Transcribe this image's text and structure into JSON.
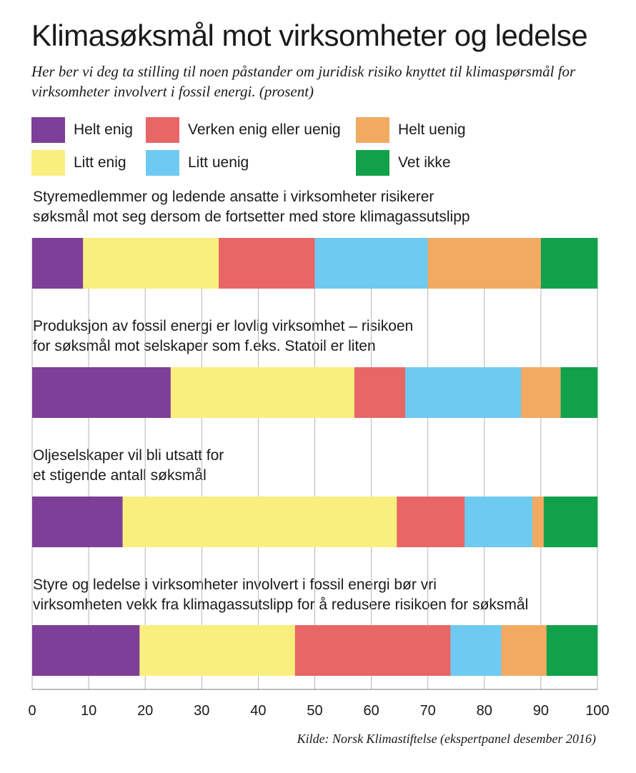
{
  "title": "Klimasøksmål mot virksomheter og ledelse",
  "subtitle": "Her ber vi deg ta stilling til noen påstander om juridisk risiko knyttet til klimaspørsmål for virksomheter involvert i fossil energi. (prosent)",
  "source": "Kilde: Norsk Klimastiftelse (ekspertpanel desember 2016)",
  "chart_data": {
    "type": "bar",
    "orientation": "horizontal-stacked",
    "categories": [
      "Styremedlemmer og ledende ansatte i virksomheter risikerer søksmål mot seg dersom de fortsetter med store klimagassutslipp",
      "Produksjon av fossil energi er lovlig virksomhet – risikoen for søksmål mot selskaper som f.eks. Statoil er liten",
      "Oljeselskaper vil bli utsatt for et stigende antall søksmål",
      "Styre og ledelse i virksomheter involvert i fossil energi bør vri virksomheten vekk fra klimagassutslipp for å redusere risikoen for søksmål"
    ],
    "category_lines": [
      [
        "Styremedlemmer og ledende ansatte i virksomheter risikerer",
        "søksmål mot seg dersom de fortsetter med store klimagassutslipp"
      ],
      [
        "Produksjon av fossil energi er lovlig virksomhet – risikoen",
        "for søksmål mot selskaper som f.eks. Statoil er liten"
      ],
      [
        "Oljeselskaper vil bli utsatt for",
        "et stigende antall søksmål"
      ],
      [
        "Styre og ledelse i virksomheter involvert i fossil energi bør vri",
        "virksomheten vekk fra klimagassutslipp for å redusere risikoen for søksmål"
      ]
    ],
    "series": [
      {
        "name": "Helt enig",
        "color": "#7e3f98",
        "values": [
          9,
          24.5,
          16,
          19
        ]
      },
      {
        "name": "Litt enig",
        "color": "#f9ef7f",
        "values": [
          24,
          32.5,
          48.5,
          27.5
        ]
      },
      {
        "name": "Verken enig eller uenig",
        "color": "#e96666",
        "values": [
          17,
          9,
          12,
          27.5
        ]
      },
      {
        "name": "Litt uenig",
        "color": "#6ecaf0",
        "values": [
          20,
          20.5,
          12,
          9
        ]
      },
      {
        "name": "Helt uenig",
        "color": "#f2aa62",
        "values": [
          20,
          7,
          2,
          8
        ]
      },
      {
        "name": "Vet ikke",
        "color": "#12a14b",
        "values": [
          10,
          6.5,
          9.5,
          9
        ]
      }
    ],
    "xlim": [
      0,
      100
    ],
    "xticks": [
      0,
      10,
      20,
      30,
      40,
      50,
      60,
      70,
      80,
      90,
      100
    ],
    "grid": true,
    "legend_position": "top"
  }
}
